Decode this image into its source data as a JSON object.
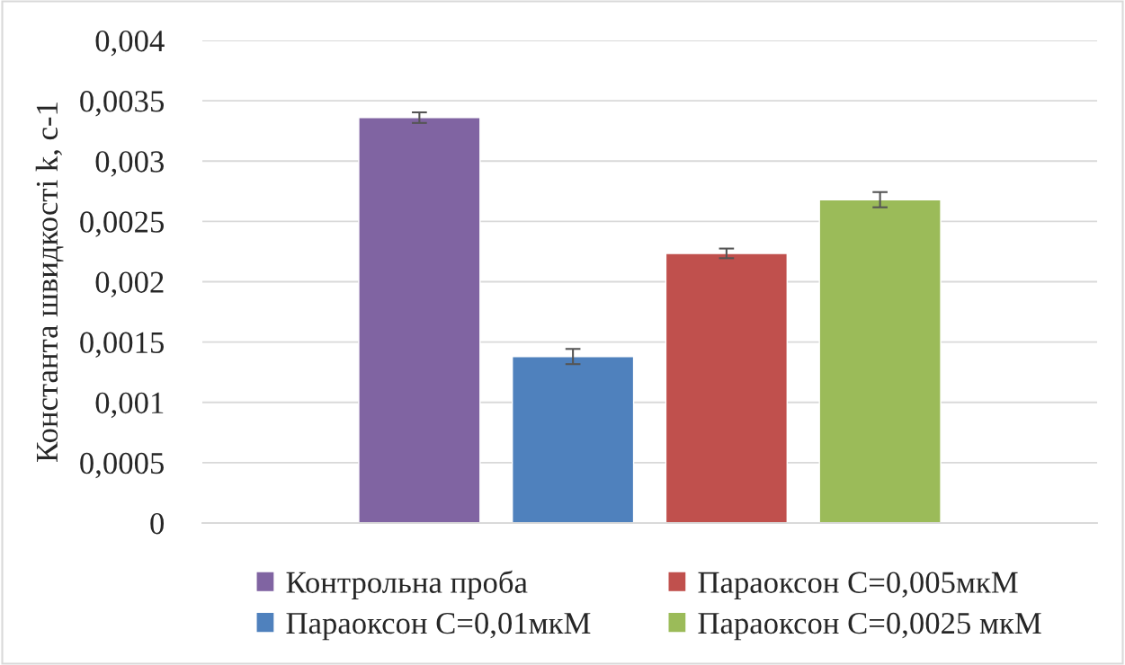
{
  "chart_data": {
    "type": "bar",
    "ylabel": "Константа швидкості k, c-1",
    "categories": [
      null
    ],
    "series": [
      {
        "name": "Контрольна проба",
        "color": "#8064a2",
        "values": [
          0.00336
        ],
        "errors": [
          4.4e-05
        ]
      },
      {
        "name": "Параоксон С=0,01мкМ",
        "color": "#4f81bd",
        "values": [
          0.00138
        ],
        "errors": [
          6.3e-05
        ]
      },
      {
        "name": "Параоксон С=0,005мкМ",
        "color": "#c0504d",
        "values": [
          0.002235
        ],
        "errors": [
          4e-05
        ]
      },
      {
        "name": "Параоксон С=0,0025 мкМ",
        "color": "#9bbb59",
        "values": [
          0.00268
        ],
        "errors": [
          6.3e-05
        ]
      }
    ],
    "ylim": [
      0,
      0.004
    ],
    "yticks": [
      {
        "value": 0,
        "label": "0"
      },
      {
        "value": 0.0005,
        "label": "0,0005"
      },
      {
        "value": 0.001,
        "label": "0,001"
      },
      {
        "value": 0.0015,
        "label": "0,0015"
      },
      {
        "value": 0.002,
        "label": "0,002"
      },
      {
        "value": 0.0025,
        "label": "0,0025"
      },
      {
        "value": 0.003,
        "label": "0,003"
      },
      {
        "value": 0.0035,
        "label": "0,0035"
      },
      {
        "value": 0.004,
        "label": "0,004"
      }
    ],
    "grid": "y",
    "legend": "bottom"
  }
}
